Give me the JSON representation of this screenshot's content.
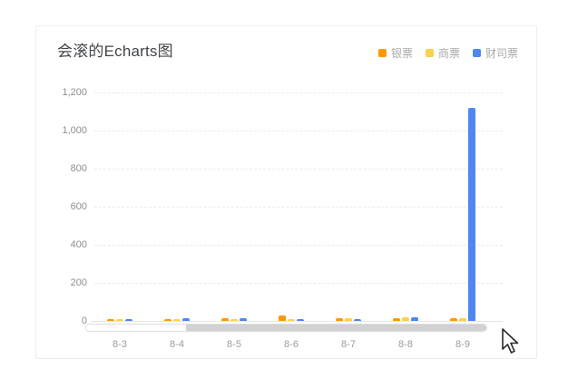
{
  "title": "会滚的Echarts图",
  "legend": {
    "items": [
      {
        "label": "银票",
        "color": "#FF9800"
      },
      {
        "label": "商票",
        "color": "#FBD24B"
      },
      {
        "label": "财司票",
        "color": "#4E87F1"
      }
    ]
  },
  "chart_data": {
    "type": "bar",
    "title": "会滚的Echarts图",
    "categories": [
      "8-3",
      "8-4",
      "8-5",
      "8-6",
      "8-7",
      "8-8",
      "8-9"
    ],
    "series": [
      {
        "name": "银票",
        "color": "#FF9800",
        "values": [
          10,
          10,
          14,
          28,
          12,
          14,
          14
        ]
      },
      {
        "name": "商票",
        "color": "#FBD24B",
        "values": [
          8,
          8,
          10,
          8,
          12,
          18,
          12
        ]
      },
      {
        "name": "财司票",
        "color": "#4E87F1",
        "values": [
          10,
          12,
          12,
          10,
          8,
          18,
          1120
        ]
      }
    ],
    "xlabel": "",
    "ylabel": "",
    "ylim": [
      0,
      1200
    ],
    "yticks": [
      0,
      200,
      400,
      600,
      800,
      1000,
      1200
    ],
    "ytick_labels": [
      "0",
      "200",
      "400",
      "600",
      "800",
      "1,000",
      "1,200"
    ],
    "grid": true,
    "grid_style": "dashed",
    "legend_position": "top-right",
    "legend_entries": [
      "银票",
      "商票",
      "财司票"
    ]
  },
  "datazoom": {
    "window_start_pct": 25,
    "window_end_pct": 100
  }
}
